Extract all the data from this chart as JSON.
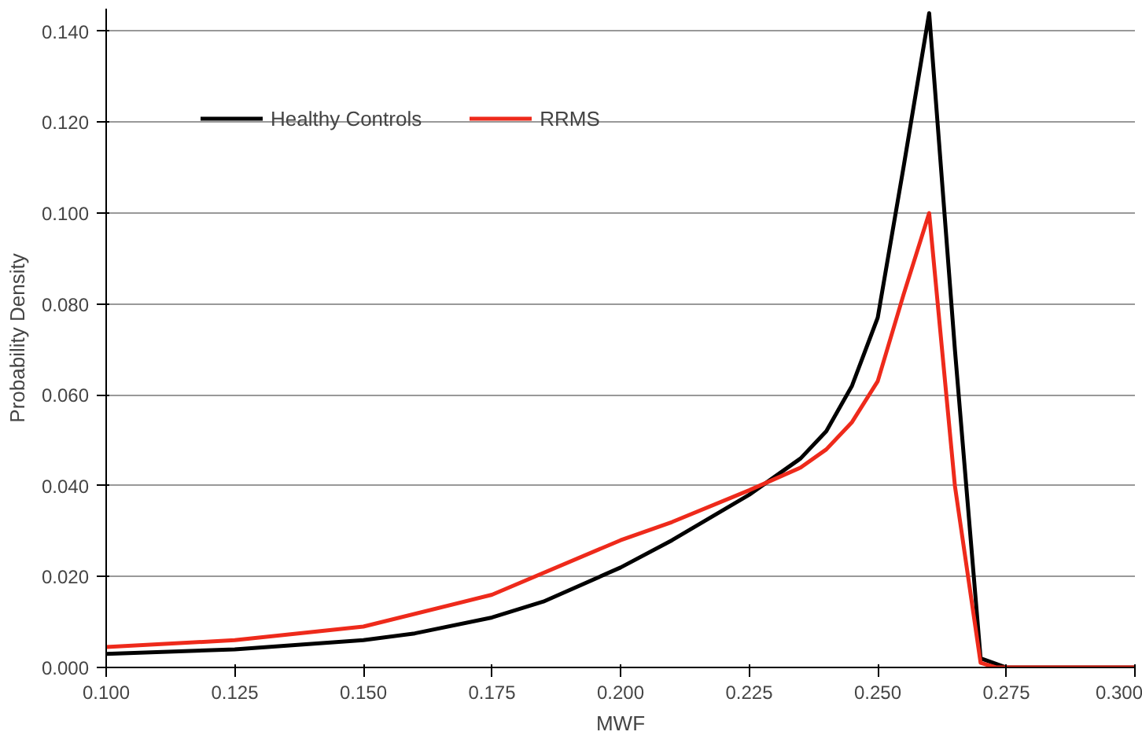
{
  "chart_data": {
    "type": "line",
    "xlabel": "MWF",
    "ylabel": "Probability Density",
    "xlim": [
      0.1,
      0.3
    ],
    "xticks": [
      {
        "value": 0.1,
        "label": "0.100"
      },
      {
        "value": 0.125,
        "label": "0.125"
      },
      {
        "value": 0.15,
        "label": "0.150"
      },
      {
        "value": 0.175,
        "label": "0.175"
      },
      {
        "value": 0.2,
        "label": "0.200"
      },
      {
        "value": 0.225,
        "label": "0.225"
      },
      {
        "value": 0.25,
        "label": "0.250"
      },
      {
        "value": 0.275,
        "label": "0.275"
      },
      {
        "value": 0.3,
        "label": "0.300"
      }
    ],
    "ylim": [
      0,
      0.145
    ],
    "yticks": [
      {
        "value": 0,
        "label": "0.000"
      },
      {
        "value": 0.02,
        "label": "0.020"
      },
      {
        "value": 0.04,
        "label": "0.040"
      },
      {
        "value": 0.06,
        "label": "0.060"
      },
      {
        "value": 0.08,
        "label": "0.080"
      },
      {
        "value": 0.1,
        "label": "0.100"
      },
      {
        "value": 0.12,
        "label": "0.120"
      },
      {
        "value": 0.14,
        "label": "0.140"
      }
    ],
    "grid": "y",
    "legend": "top left",
    "marker": "none",
    "line_style": "solid",
    "series": [
      {
        "name": "Healthy Controls",
        "color": "#000000",
        "x": [
          0.1,
          0.125,
          0.15,
          0.16,
          0.175,
          0.185,
          0.2,
          0.21,
          0.225,
          0.235,
          0.24,
          0.245,
          0.25,
          0.255,
          0.26,
          0.265,
          0.27,
          0.275,
          0.3
        ],
        "values": [
          0.003,
          0.004,
          0.006,
          0.0075,
          0.011,
          0.0145,
          0.022,
          0.028,
          0.038,
          0.046,
          0.052,
          0.062,
          0.077,
          0.11,
          0.144,
          0.07,
          0.002,
          0.0,
          0.0
        ]
      },
      {
        "name": "RRMS",
        "color": "#ee2a1b",
        "x": [
          0.1,
          0.125,
          0.15,
          0.175,
          0.2,
          0.21,
          0.225,
          0.235,
          0.24,
          0.245,
          0.25,
          0.255,
          0.26,
          0.265,
          0.27,
          0.273,
          0.3
        ],
        "values": [
          0.0045,
          0.006,
          0.009,
          0.016,
          0.028,
          0.032,
          0.039,
          0.044,
          0.048,
          0.054,
          0.063,
          0.082,
          0.1,
          0.04,
          0.001,
          0.0,
          0.0
        ]
      }
    ]
  }
}
